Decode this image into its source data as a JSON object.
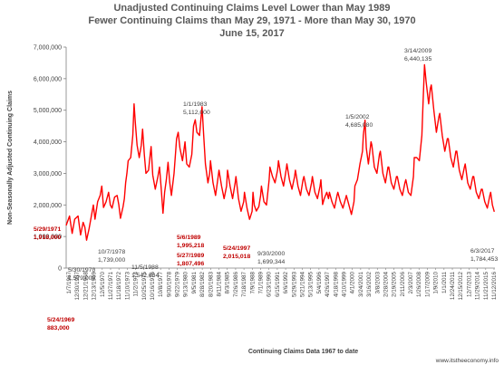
{
  "chart_data": {
    "type": "line",
    "title": [
      "Unadjusted Continuing Claims Level Lower than May 1989",
      "Fewer Continuing Claims than May 29, 1971 - More than May 30, 1970",
      "June 15, 2017"
    ],
    "xlabel": "Continuing Claims Data 1967 to date",
    "ylabel": "Non-Seasonally Adjusted Continuing Claims",
    "ylim": [
      0,
      7000000
    ],
    "yticks": [
      0,
      1000000,
      2000000,
      3000000,
      4000000,
      5000000,
      6000000,
      7000000
    ],
    "ytick_labels": [
      "0",
      "1,000,000",
      "2,000,000",
      "3,000,000",
      "4,000,000",
      "5,000,000",
      "6,000,000",
      "7,000,000"
    ],
    "xlim": [
      1967.0,
      2017.5
    ],
    "grid": false,
    "line_color": "#ff0000",
    "source_credit": "www.itstheeconomy.info",
    "xtick_labels": [
      "1/7/1967",
      "12/30/1967",
      "12/21/1968",
      "12/13/1969",
      "12/5/1970",
      "11/27/1971",
      "11/18/1972",
      "11/10/1973",
      "11/2/1974",
      "10/25/1975",
      "10/16/1976",
      "10/8/1977",
      "9/30/1978",
      "9/22/1979",
      "9/13/1980",
      "9/5/1981",
      "8/28/1982",
      "8/20/1983",
      "8/11/1984",
      "8/3/1985",
      "7/26/1986",
      "7/18/1987",
      "7/9/1988",
      "7/1/1989",
      "6/23/1990",
      "6/15/1991",
      "6/6/1992",
      "5/29/1993",
      "5/21/1994",
      "5/13/1995",
      "5/4/1996",
      "4/26/1997",
      "4/18/1998",
      "4/10/1999",
      "4/1/2000",
      "3/24/2001",
      "3/16/2002",
      "3/8/2003",
      "2/28/2004",
      "2/19/2005",
      "2/11/2006",
      "2/3/2007",
      "1/26/2008",
      "1/17/2009",
      "1/9/2010",
      "1/1/2011",
      "12/24/2011",
      "12/15/2012",
      "12/7/2013",
      "11/29/2014",
      "11/21/2015",
      "11/12/2016"
    ],
    "series": [
      {
        "x": [
          1967.0,
          1967.4,
          1967.7,
          1968.0,
          1968.4,
          1968.7,
          1969.0,
          1969.2,
          1969.4,
          1969.7,
          1970.0,
          1970.2,
          1970.4,
          1970.7,
          1971.0,
          1971.2,
          1971.4,
          1971.7,
          1972.0,
          1972.2,
          1972.4,
          1972.7,
          1973.0,
          1973.2,
          1973.4,
          1973.7,
          1973.85,
          1974.0,
          1974.15,
          1974.3,
          1974.6,
          1974.85,
          1975.0,
          1975.15,
          1975.35,
          1975.6,
          1975.85,
          1976.0,
          1976.2,
          1976.4,
          1976.7,
          1976.9,
          1977.0,
          1977.2,
          1977.5,
          1977.8,
          1978.0,
          1978.2,
          1978.4,
          1978.6,
          1978.8,
          1979.0,
          1979.2,
          1979.4,
          1979.7,
          1979.9,
          1980.0,
          1980.2,
          1980.4,
          1980.7,
          1980.9,
          1981.0,
          1981.2,
          1981.5,
          1981.8,
          1982.0,
          1982.2,
          1982.4,
          1982.7,
          1982.9,
          1983.0,
          1983.2,
          1983.4,
          1983.7,
          1983.9,
          1984.0,
          1984.3,
          1984.6,
          1984.9,
          1985.0,
          1985.3,
          1985.6,
          1985.9,
          1986.0,
          1986.3,
          1986.6,
          1986.9,
          1987.0,
          1987.3,
          1987.6,
          1987.9,
          1988.0,
          1988.3,
          1988.6,
          1988.9,
          1989.0,
          1989.15,
          1989.4,
          1989.7,
          1989.9,
          1990.0,
          1990.3,
          1990.6,
          1990.9,
          1991.0,
          1991.3,
          1991.6,
          1991.9,
          1992.0,
          1992.3,
          1992.6,
          1992.9,
          1993.0,
          1993.3,
          1993.6,
          1993.9,
          1994.0,
          1994.3,
          1994.6,
          1994.9,
          1995.0,
          1995.3,
          1995.6,
          1995.9,
          1996.0,
          1996.3,
          1996.6,
          1996.9,
          1997.0,
          1997.2,
          1997.4,
          1997.7,
          1997.9,
          1998.0,
          1998.3,
          1998.6,
          1998.9,
          1999.0,
          1999.3,
          1999.6,
          1999.9,
          2000.0,
          2000.3,
          2000.6,
          2000.75,
          2000.9,
          2001.0,
          2001.3,
          2001.6,
          2001.9,
          2002.0,
          2002.2,
          2002.35,
          2002.6,
          2002.9,
          2003.0,
          2003.3,
          2003.6,
          2003.9,
          2004.0,
          2004.3,
          2004.6,
          2004.9,
          2005.0,
          2005.3,
          2005.6,
          2005.9,
          2006.0,
          2006.3,
          2006.6,
          2006.9,
          2007.0,
          2007.3,
          2007.6,
          2007.9,
          2008.0,
          2008.3,
          2008.6,
          2008.9,
          2009.0,
          2009.2,
          2009.4,
          2009.7,
          2009.9,
          2010.0,
          2010.3,
          2010.6,
          2010.9,
          2011.0,
          2011.3,
          2011.6,
          2011.9,
          2012.0,
          2012.3,
          2012.6,
          2012.9,
          2013.0,
          2013.3,
          2013.6,
          2013.9,
          2014.0,
          2014.3,
          2014.6,
          2014.9,
          2015.0,
          2015.3,
          2015.6,
          2015.9,
          2016.0,
          2016.3,
          2016.6,
          2016.9,
          2017.0,
          2017.2,
          2017.42
        ],
        "values": [
          1350000,
          1650000,
          1100000,
          1550000,
          1650000,
          1050000,
          1450000,
          1300000,
          883000,
          1250000,
          1700000,
          2000000,
          1550000,
          2100000,
          2300000,
          2600000,
          1918000,
          2100000,
          2400000,
          2000000,
          1900000,
          2250000,
          2300000,
          2000000,
          1579000,
          1950000,
          2200000,
          2700000,
          3000000,
          3400000,
          3500000,
          4200000,
          5200000,
          4600000,
          3900000,
          3500000,
          3900000,
          4400000,
          3600000,
          3000000,
          3100000,
          3600000,
          3850000,
          2950000,
          2500000,
          2900000,
          3200000,
          2500000,
          1739000,
          2400000,
          2800000,
          3350000,
          2700000,
          2300000,
          3000000,
          3700000,
          4100000,
          4300000,
          3800000,
          3400000,
          3800000,
          4000000,
          3300000,
          3200000,
          3600000,
          4500000,
          4700000,
          4300000,
          4200000,
          4800000,
          5112000,
          4200000,
          3300000,
          2700000,
          3000000,
          3400000,
          2700000,
          2300000,
          2900000,
          3100000,
          2600000,
          2200000,
          2600000,
          3100000,
          2600000,
          2200000,
          2700000,
          2900000,
          2200000,
          1800000,
          2100000,
          2400000,
          1900000,
          1542684,
          1800000,
          2400000,
          1995218,
          1807496,
          1950000,
          2300000,
          2600000,
          2100000,
          2000000,
          2800000,
          3200000,
          2900000,
          2700000,
          3100000,
          3400000,
          2900000,
          2600000,
          3100000,
          3300000,
          2800000,
          2500000,
          2900000,
          3100000,
          2600000,
          2300000,
          2800000,
          2900000,
          2500000,
          2300000,
          2700000,
          2900000,
          2400000,
          2200000,
          2600000,
          2800000,
          2015018,
          2200000,
          2400000,
          2200000,
          2400000,
          2100000,
          1900000,
          2300000,
          2400000,
          2100000,
          1900000,
          2200000,
          2300000,
          2000000,
          1699344,
          1900000,
          2100000,
          2600000,
          2800000,
          3300000,
          3700000,
          4200000,
          4685080,
          3800000,
          3300000,
          4000000,
          3900000,
          3200000,
          3000000,
          3600000,
          3700000,
          3000000,
          2700000,
          3200000,
          3200000,
          2700000,
          2500000,
          2900000,
          2900000,
          2500000,
          2300000,
          2700000,
          2800000,
          2400000,
          2300000,
          2900000,
          3500000,
          3500000,
          3400000,
          4200000,
          5000000,
          6440135,
          5900000,
          5200000,
          5700000,
          5800000,
          5000000,
          4300000,
          4800000,
          4900000,
          4200000,
          3700000,
          4100000,
          4100000,
          3500000,
          3200000,
          3700000,
          3700000,
          3100000,
          2800000,
          3200000,
          3300000,
          2700000,
          2500000,
          2900000,
          2900000,
          2400000,
          2200000,
          2500000,
          2500000,
          2100000,
          1900000,
          2300000,
          2400000,
          2000000,
          1784453
        ]
      }
    ],
    "annotations": [
      {
        "text": [
          "5/24/1969",
          "883,000"
        ],
        "color": "#c00000"
      },
      {
        "text": [
          "5/29/1971",
          "1,918,000"
        ],
        "color": "#c00000"
      },
      {
        "text": [
          "5/30/1970",
          "1,579,000"
        ],
        "color": "#404040"
      },
      {
        "text": [
          "10/7/1978",
          "1,739,000"
        ],
        "color": "#404040"
      },
      {
        "text": [
          "1/1/1983",
          "5,112,000"
        ],
        "color": "#404040"
      },
      {
        "text": [
          "11/5/1988",
          "1,542,684"
        ],
        "color": "#404040"
      },
      {
        "text": [
          "5/6/1989",
          "1,995,218"
        ],
        "color": "#c00000"
      },
      {
        "text": [
          "5/27/1989",
          "1,807,496"
        ],
        "color": "#c00000"
      },
      {
        "text": [
          "5/24/1997",
          "2,015,018"
        ],
        "color": "#c00000"
      },
      {
        "text": [
          "9/30/2000",
          "1,699,344"
        ],
        "color": "#404040"
      },
      {
        "text": [
          "1/5/2002",
          "4,685,080"
        ],
        "color": "#404040"
      },
      {
        "text": [
          "3/14/2009",
          "6,440,135"
        ],
        "color": "#404040"
      },
      {
        "text": [
          "6/3/2017",
          "1,784,453"
        ],
        "color": "#404040"
      }
    ]
  }
}
